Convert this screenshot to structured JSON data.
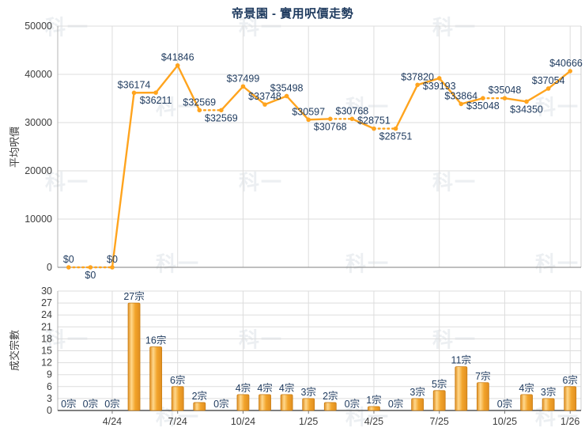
{
  "title": "帝景園 - 實用呎價走勢",
  "watermark": "科一",
  "colors": {
    "title_navy": "#1E3A5E",
    "label_navy": "#1E3A5E",
    "line_orange": "#FFA41E",
    "bar_edge": "#C97E15",
    "bar_dark": "#E08E20",
    "bar_light": "#FFD88C",
    "bar_mid": "#F2A42B",
    "axis_text": "#3d3d3d",
    "grid": "#dddddd",
    "axis_line": "#b4b4b4",
    "baseline_top": "#999999",
    "baseline_bottom": "#555555",
    "right_border": "#cfcfcf"
  },
  "chart_data": [
    {
      "type": "line",
      "title": "帝景園 - 實用呎價走勢",
      "ylabel": "平均呎價",
      "ylim": [
        0,
        50000
      ],
      "yticks": [
        0,
        10000,
        20000,
        30000,
        40000,
        50000
      ],
      "n_points": 24,
      "values": [
        0,
        0,
        0,
        36174,
        36211,
        41846,
        32569,
        32569,
        37499,
        33748,
        35498,
        30597,
        30768,
        30768,
        28751,
        28751,
        37820,
        39193,
        33864,
        35048,
        35048,
        34350,
        37054,
        40666
      ],
      "point_labels": [
        "$0",
        "$0",
        "$0",
        "$36174",
        "$36211",
        "$41846",
        "$32569",
        "$32569",
        "$37499",
        "$33748",
        "$35498",
        "$30597",
        "$30768",
        "$30768",
        "$28751",
        "$28751",
        "$37820",
        "$39193",
        "$33864",
        "$35048",
        "$35048",
        "$34350",
        "$37054",
        "$40666"
      ],
      "label_side": [
        "above",
        "below",
        "above",
        "above",
        "below",
        "above",
        "above",
        "below",
        "above",
        "above",
        "above",
        "above",
        "below",
        "above",
        "above",
        "below",
        "above",
        "below",
        "above",
        "below",
        "above",
        "below",
        "above",
        "above"
      ],
      "dotted_segments": [
        [
          0,
          1
        ],
        [
          1,
          2
        ],
        [
          6,
          7
        ],
        [
          12,
          13
        ],
        [
          14,
          15
        ],
        [
          19,
          20
        ]
      ],
      "grid": true,
      "legend": "none"
    },
    {
      "type": "bar",
      "ylabel": "成交宗數",
      "ylim": [
        0,
        30
      ],
      "yticks": [
        0,
        3,
        6,
        9,
        12,
        15,
        18,
        21,
        24,
        27,
        30
      ],
      "values": [
        0,
        0,
        0,
        27,
        16,
        6,
        2,
        0,
        4,
        4,
        4,
        3,
        2,
        0,
        1,
        0,
        3,
        5,
        11,
        7,
        0,
        4,
        3,
        6
      ],
      "bar_labels": [
        "0宗",
        "0宗",
        "0宗",
        "27宗",
        "16宗",
        "6宗",
        "2宗",
        "0宗",
        "4宗",
        "4宗",
        "4宗",
        "3宗",
        "2宗",
        "0宗",
        "1宗",
        "0宗",
        "3宗",
        "5宗",
        "11宗",
        "7宗",
        "0宗",
        "4宗",
        "3宗",
        "6宗"
      ],
      "x_ticks": [
        {
          "i": 2,
          "label": "4/24"
        },
        {
          "i": 5,
          "label": "7/24"
        },
        {
          "i": 8,
          "label": "10/24"
        },
        {
          "i": 11,
          "label": "1/25"
        },
        {
          "i": 14,
          "label": "4/25"
        },
        {
          "i": 17,
          "label": "7/25"
        },
        {
          "i": 20,
          "label": "10/25"
        },
        {
          "i": 23,
          "label": "1/26"
        }
      ],
      "grid": true,
      "legend": "none"
    }
  ]
}
